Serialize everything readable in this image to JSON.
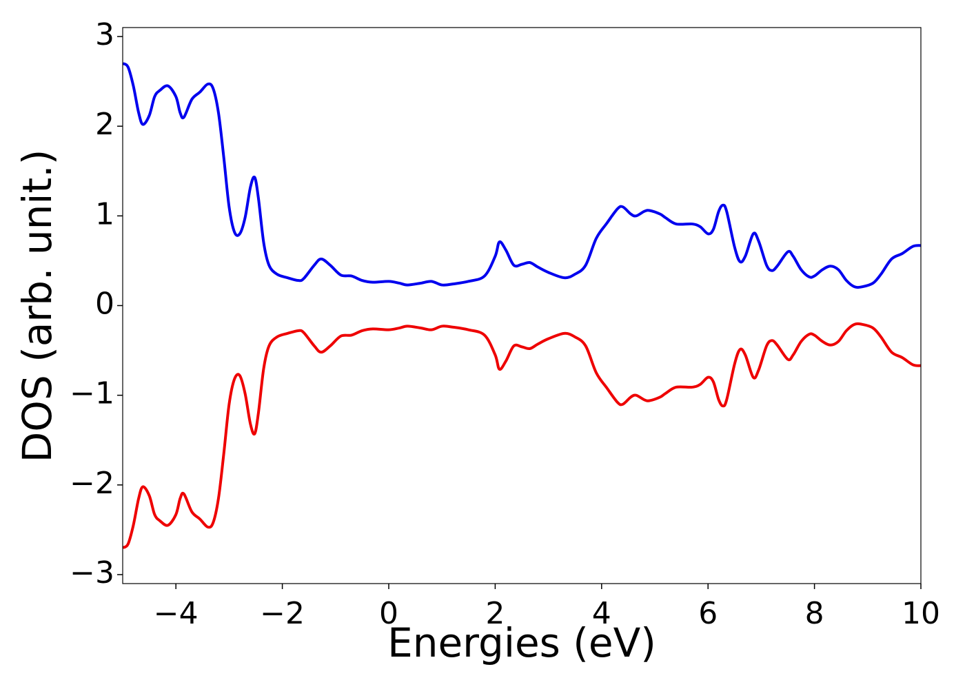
{
  "chart_data": {
    "type": "line",
    "xlabel": "Energies (eV)",
    "ylabel": "DOS (arb. unit.)",
    "x": [
      -5.0,
      -4.9,
      -4.8,
      -4.7,
      -4.62,
      -4.5,
      -4.4,
      -4.3,
      -4.15,
      -4.0,
      -3.92,
      -3.85,
      -3.7,
      -3.55,
      -3.4,
      -3.3,
      -3.2,
      -3.1,
      -3.0,
      -2.9,
      -2.8,
      -2.7,
      -2.6,
      -2.52,
      -2.45,
      -2.35,
      -2.25,
      -2.1,
      -1.9,
      -1.7,
      -1.6,
      -1.4,
      -1.27,
      -1.1,
      -0.9,
      -0.7,
      -0.5,
      -0.3,
      0.0,
      0.2,
      0.35,
      0.6,
      0.8,
      1.0,
      1.2,
      1.5,
      1.8,
      2.0,
      2.08,
      2.2,
      2.35,
      2.5,
      2.65,
      2.8,
      3.0,
      3.3,
      3.5,
      3.7,
      3.9,
      4.1,
      4.3,
      4.4,
      4.55,
      4.65,
      4.8,
      4.9,
      5.1,
      5.2,
      5.4,
      5.7,
      5.85,
      6.0,
      6.1,
      6.2,
      6.28,
      6.35,
      6.5,
      6.6,
      6.7,
      6.85,
      6.95,
      7.1,
      7.2,
      7.3,
      7.5,
      7.6,
      7.75,
      7.9,
      8.0,
      8.15,
      8.3,
      8.45,
      8.6,
      8.75,
      8.9,
      9.1,
      9.25,
      9.45,
      9.65,
      9.85,
      10.0
    ],
    "series": [
      {
        "color": "#0000ee",
        "values": [
          2.7,
          2.66,
          2.45,
          2.15,
          2.02,
          2.12,
          2.33,
          2.4,
          2.45,
          2.33,
          2.15,
          2.1,
          2.3,
          2.38,
          2.47,
          2.42,
          2.15,
          1.65,
          1.1,
          0.82,
          0.8,
          0.98,
          1.32,
          1.43,
          1.2,
          0.7,
          0.45,
          0.35,
          0.31,
          0.28,
          0.3,
          0.45,
          0.52,
          0.45,
          0.34,
          0.33,
          0.28,
          0.26,
          0.27,
          0.25,
          0.23,
          0.25,
          0.27,
          0.23,
          0.24,
          0.27,
          0.33,
          0.55,
          0.71,
          0.62,
          0.45,
          0.46,
          0.48,
          0.43,
          0.37,
          0.31,
          0.35,
          0.45,
          0.75,
          0.92,
          1.08,
          1.1,
          1.02,
          1.0,
          1.05,
          1.06,
          1.02,
          0.98,
          0.91,
          0.91,
          0.88,
          0.8,
          0.85,
          1.05,
          1.12,
          1.05,
          0.65,
          0.49,
          0.55,
          0.8,
          0.72,
          0.45,
          0.39,
          0.44,
          0.6,
          0.55,
          0.4,
          0.32,
          0.33,
          0.4,
          0.44,
          0.4,
          0.28,
          0.21,
          0.21,
          0.25,
          0.35,
          0.52,
          0.58,
          0.66,
          0.67
        ]
      },
      {
        "color": "#ee0000",
        "values": [
          -2.7,
          -2.66,
          -2.45,
          -2.15,
          -2.02,
          -2.12,
          -2.33,
          -2.4,
          -2.45,
          -2.33,
          -2.15,
          -2.1,
          -2.3,
          -2.38,
          -2.47,
          -2.42,
          -2.15,
          -1.65,
          -1.1,
          -0.82,
          -0.78,
          -0.98,
          -1.32,
          -1.43,
          -1.2,
          -0.7,
          -0.45,
          -0.35,
          -0.31,
          -0.28,
          -0.3,
          -0.45,
          -0.52,
          -0.45,
          -0.34,
          -0.33,
          -0.28,
          -0.26,
          -0.27,
          -0.25,
          -0.23,
          -0.25,
          -0.27,
          -0.23,
          -0.24,
          -0.27,
          -0.33,
          -0.55,
          -0.71,
          -0.62,
          -0.45,
          -0.46,
          -0.48,
          -0.43,
          -0.37,
          -0.31,
          -0.35,
          -0.45,
          -0.75,
          -0.92,
          -1.08,
          -1.1,
          -1.02,
          -1.0,
          -1.05,
          -1.06,
          -1.02,
          -0.98,
          -0.91,
          -0.91,
          -0.88,
          -0.8,
          -0.85,
          -1.05,
          -1.12,
          -1.05,
          -0.65,
          -0.49,
          -0.55,
          -0.8,
          -0.72,
          -0.45,
          -0.39,
          -0.44,
          -0.6,
          -0.55,
          -0.4,
          -0.32,
          -0.33,
          -0.4,
          -0.44,
          -0.4,
          -0.28,
          -0.21,
          -0.21,
          -0.25,
          -0.35,
          -0.52,
          -0.58,
          -0.66,
          -0.67
        ]
      }
    ],
    "xlim": [
      -5,
      10
    ],
    "xticks": [
      {
        "value": -4,
        "label": "−4"
      },
      {
        "value": -2,
        "label": "−2"
      },
      0,
      2,
      4,
      6,
      8,
      10
    ],
    "ylim": [
      -3.1,
      3.1
    ],
    "yticks": [
      {
        "value": -3,
        "label": "−3"
      },
      {
        "value": -2,
        "label": "−2"
      },
      {
        "value": -1,
        "label": "−1"
      },
      0,
      1,
      2,
      3
    ],
    "grid": false
  }
}
